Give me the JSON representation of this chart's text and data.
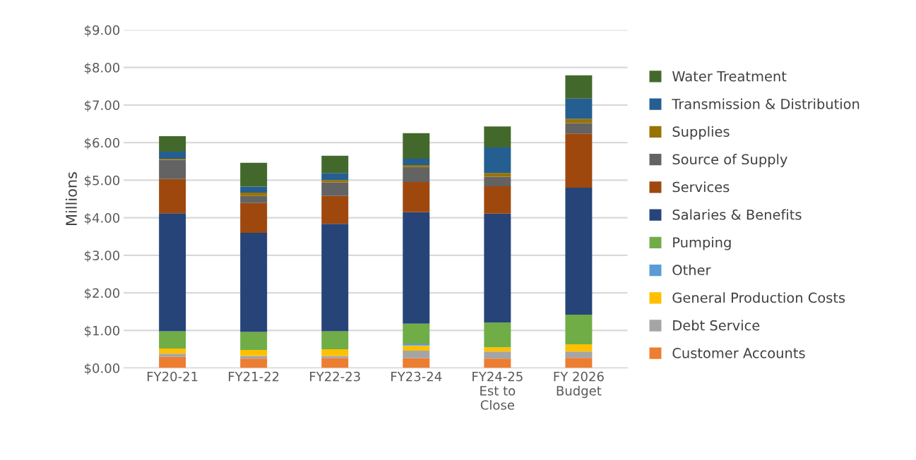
{
  "chart_data": {
    "type": "bar",
    "stacked": true,
    "ylabel": "Millions",
    "categories": [
      "FY20-21",
      "FY21-22",
      "FY22-23",
      "FY23-24",
      "FY24-25\nEst to\nClose",
      "FY 2026\nBudget"
    ],
    "series": [
      {
        "name": "Customer Accounts",
        "color": "#ed7d31",
        "values": [
          0.3,
          0.25,
          0.26,
          0.26,
          0.25,
          0.27
        ]
      },
      {
        "name": "Debt Service",
        "color": "#a5a5a5",
        "values": [
          0.08,
          0.07,
          0.06,
          0.2,
          0.19,
          0.17
        ]
      },
      {
        "name": "General Production Costs",
        "color": "#ffc000",
        "values": [
          0.14,
          0.16,
          0.18,
          0.14,
          0.11,
          0.19
        ]
      },
      {
        "name": "Other",
        "color": "#5b9bd5",
        "values": [
          0,
          0,
          0,
          0.05,
          0,
          0
        ]
      },
      {
        "name": "Pumping",
        "color": "#70ad47",
        "values": [
          0.46,
          0.48,
          0.48,
          0.53,
          0.66,
          0.79
        ]
      },
      {
        "name": "Salaries & Benefits",
        "color": "#264478",
        "values": [
          3.14,
          2.64,
          2.86,
          2.97,
          2.9,
          3.38
        ]
      },
      {
        "name": "Services",
        "color": "#9e480e",
        "values": [
          0.91,
          0.79,
          0.74,
          0.8,
          0.73,
          1.44
        ]
      },
      {
        "name": "Source of Supply",
        "color": "#636363",
        "values": [
          0.51,
          0.19,
          0.36,
          0.4,
          0.25,
          0.28
        ]
      },
      {
        "name": "Supplies",
        "color": "#997300",
        "values": [
          0.03,
          0.09,
          0.06,
          0.05,
          0.1,
          0.11
        ]
      },
      {
        "name": "Transmission & Distribution",
        "color": "#255e91",
        "values": [
          0.19,
          0.16,
          0.19,
          0.17,
          0.68,
          0.54
        ]
      },
      {
        "name": "Water Treatment",
        "color": "#43682b",
        "values": [
          0.41,
          0.63,
          0.46,
          0.68,
          0.56,
          0.62
        ]
      }
    ],
    "ylim": [
      0,
      9
    ],
    "yticks": [
      {
        "value": 0,
        "label": "$0.00"
      },
      {
        "value": 1,
        "label": "$1.00"
      },
      {
        "value": 2,
        "label": "$2.00"
      },
      {
        "value": 3,
        "label": "$3.00"
      },
      {
        "value": 4,
        "label": "$4.00"
      },
      {
        "value": 5,
        "label": "$5.00"
      },
      {
        "value": 6,
        "label": "$6.00"
      },
      {
        "value": 7,
        "label": "$7.00"
      },
      {
        "value": 8,
        "label": "$8.00"
      },
      {
        "value": 9,
        "label": "$9.00"
      }
    ],
    "grid": "y",
    "legend": "right"
  }
}
